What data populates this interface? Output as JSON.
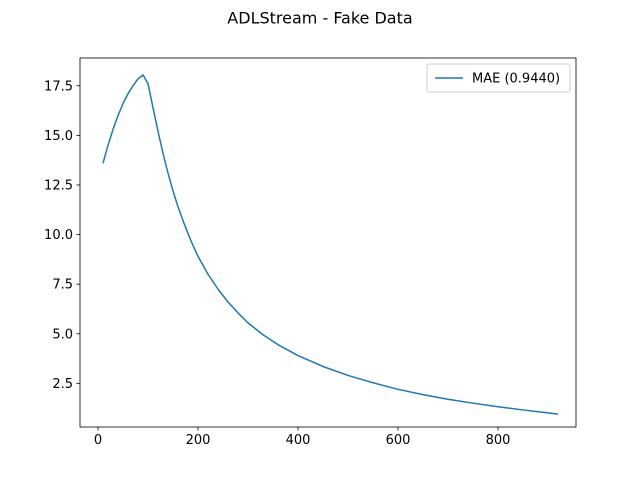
{
  "figure": {
    "title": "ADLStream - Fake Data"
  },
  "chart_data": {
    "type": "line",
    "title": "ADLStream - Fake Data",
    "xlabel": "",
    "ylabel": "",
    "xlim": [
      -36,
      956
    ],
    "ylim": [
      0.3,
      18.9
    ],
    "xticks": [
      0,
      200,
      400,
      600,
      800
    ],
    "yticks": [
      2.5,
      5.0,
      7.5,
      10.0,
      12.5,
      15.0,
      17.5
    ],
    "ytick_labels": [
      "2.5",
      "5.0",
      "7.5",
      "10.0",
      "12.5",
      "15.0",
      "17.5"
    ],
    "grid": false,
    "legend": "upper-right",
    "series": [
      {
        "name": "MAE (0.9440)",
        "color": "#1f77b4",
        "x": [
          10,
          20,
          30,
          40,
          50,
          60,
          70,
          80,
          90,
          100,
          110,
          120,
          130,
          140,
          150,
          160,
          170,
          180,
          190,
          200,
          220,
          240,
          260,
          280,
          300,
          330,
          360,
          400,
          450,
          500,
          550,
          600,
          650,
          700,
          750,
          800,
          850,
          900,
          920
        ],
        "values": [
          13.6,
          14.5,
          15.3,
          16.0,
          16.6,
          17.1,
          17.5,
          17.85,
          18.05,
          17.6,
          16.4,
          15.2,
          14.1,
          13.1,
          12.2,
          11.4,
          10.7,
          10.05,
          9.45,
          8.9,
          8.0,
          7.25,
          6.6,
          6.05,
          5.55,
          4.95,
          4.45,
          3.9,
          3.35,
          2.9,
          2.53,
          2.2,
          1.93,
          1.7,
          1.5,
          1.32,
          1.16,
          1.01,
          0.95
        ]
      }
    ]
  }
}
